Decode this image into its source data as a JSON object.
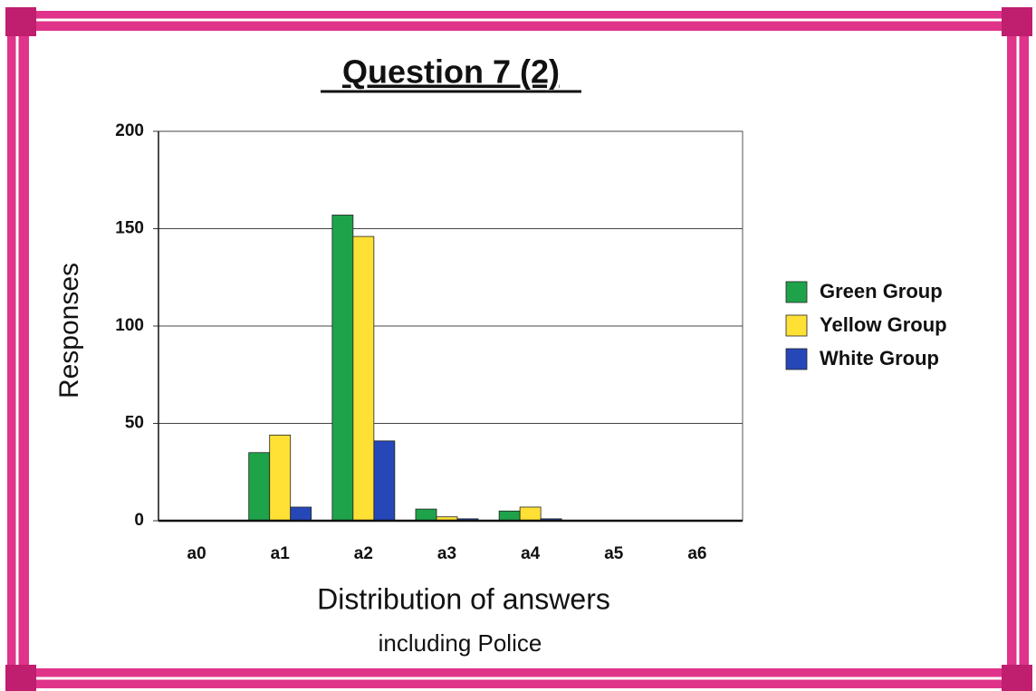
{
  "chart_data": {
    "type": "bar",
    "title": "Question 7 (2)",
    "y_label": "Responses",
    "x_label": "Distribution of answers",
    "x_sublabel": "including Police",
    "categories": [
      "a0",
      "a1",
      "a2",
      "a3",
      "a4",
      "a5",
      "a6"
    ],
    "series": [
      {
        "name": "Green Group",
        "color": "#1fa34a",
        "values": [
          0,
          35,
          157,
          6,
          5,
          0,
          0
        ]
      },
      {
        "name": "Yellow Group",
        "color": "#ffe135",
        "values": [
          0,
          44,
          146,
          2,
          7,
          0,
          0
        ]
      },
      {
        "name": "White Group",
        "color": "#2547b8",
        "values": [
          0,
          7,
          41,
          1,
          1,
          0,
          0
        ]
      }
    ],
    "ylim": [
      0,
      200
    ],
    "yticks": [
      0,
      50,
      100,
      150,
      200
    ],
    "grid": true,
    "legend": "right"
  }
}
